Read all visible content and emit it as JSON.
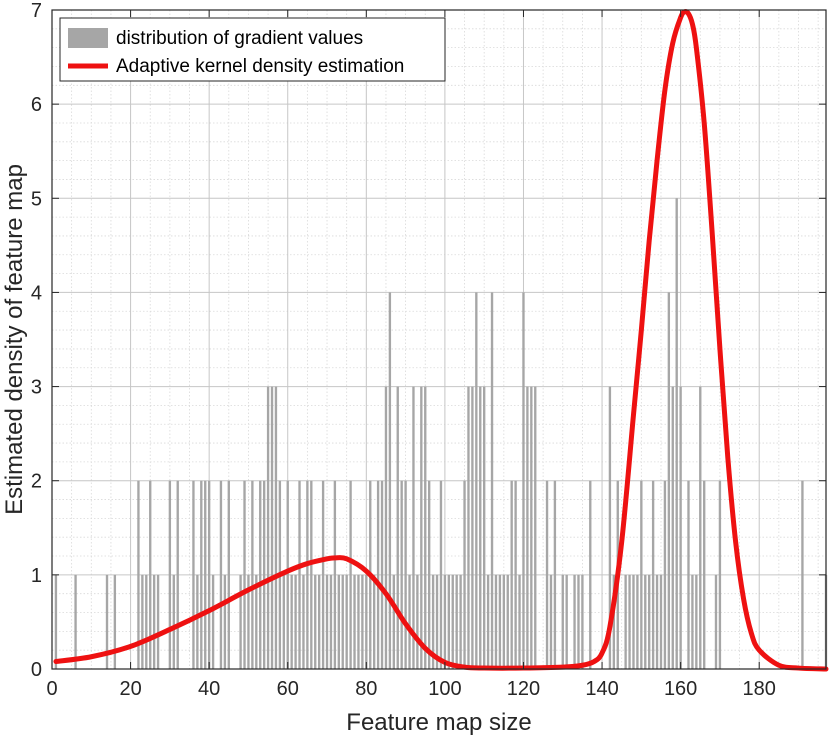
{
  "chart_data": {
    "type": "bar",
    "xlabel": "Feature map size",
    "ylabel": "Estimated density of feature map",
    "xlim": [
      0,
      197
    ],
    "ylim": [
      0,
      7
    ],
    "xticks": [
      0,
      20,
      40,
      60,
      80,
      100,
      120,
      140,
      160,
      180
    ],
    "yticks": [
      0,
      1,
      2,
      3,
      4,
      5,
      6,
      7
    ],
    "grid": true,
    "minor_grid": true,
    "legend_position": "top-left",
    "series": [
      {
        "name": "distribution of gradient values",
        "kind": "histogram",
        "color": "#a6a6a6",
        "x": [
          1,
          6,
          14,
          16,
          22,
          23,
          24,
          25,
          26,
          27,
          30,
          31,
          32,
          36,
          37,
          38,
          39,
          40,
          41,
          43,
          44,
          45,
          48,
          49,
          50,
          51,
          52,
          53,
          54,
          55,
          56,
          57,
          58,
          59,
          60,
          61,
          62,
          63,
          64,
          65,
          66,
          67,
          68,
          69,
          70,
          71,
          72,
          73,
          74,
          75,
          76,
          77,
          78,
          79,
          80,
          81,
          82,
          83,
          84,
          85,
          86,
          87,
          88,
          89,
          90,
          91,
          92,
          93,
          94,
          95,
          96,
          97,
          98,
          99,
          100,
          101,
          102,
          103,
          104,
          105,
          106,
          107,
          108,
          109,
          110,
          111,
          112,
          113,
          114,
          115,
          116,
          117,
          118,
          119,
          120,
          121,
          122,
          123,
          126,
          127,
          128,
          130,
          131,
          133,
          134,
          135,
          137,
          142,
          143,
          144,
          146,
          147,
          148,
          149,
          150,
          151,
          152,
          153,
          154,
          155,
          156,
          157,
          158,
          159,
          160,
          162,
          163,
          164,
          165,
          166,
          169,
          170,
          191,
          197
        ],
        "values": [
          1,
          1,
          1,
          1,
          2,
          1,
          1,
          2,
          1,
          1,
          2,
          1,
          2,
          2,
          1,
          2,
          2,
          2,
          1,
          2,
          1,
          2,
          1,
          2,
          1,
          2,
          1,
          2,
          2,
          3,
          3,
          3,
          2,
          1,
          2,
          1,
          1,
          2,
          1,
          2,
          2,
          1,
          1,
          2,
          1,
          1,
          2,
          1,
          1,
          1,
          2,
          1,
          1,
          1,
          1,
          2,
          1,
          2,
          2,
          3,
          4,
          1,
          3,
          2,
          2,
          1,
          3,
          1,
          3,
          3,
          2,
          1,
          1,
          2,
          1,
          1,
          1,
          1,
          1,
          2,
          3,
          3,
          4,
          3,
          3,
          1,
          4,
          1,
          1,
          1,
          1,
          2,
          2,
          1,
          4,
          3,
          3,
          3,
          2,
          1,
          2,
          1,
          1,
          1,
          1,
          1,
          2,
          3,
          1,
          2,
          1,
          1,
          1,
          1,
          2,
          1,
          1,
          2,
          1,
          1,
          2,
          4,
          3,
          5,
          3,
          2,
          1,
          1,
          3,
          2,
          1,
          2,
          2,
          1
        ]
      },
      {
        "name": "Adaptive kernel density estimation",
        "kind": "line",
        "color": "#ee1111",
        "x": [
          1,
          10,
          20,
          30,
          40,
          50,
          60,
          65,
          70,
          72,
          75,
          80,
          85,
          90,
          95,
          100,
          105,
          110,
          120,
          130,
          135,
          138,
          140,
          142,
          145,
          148,
          150,
          152,
          154,
          156,
          158,
          160,
          161,
          162,
          163,
          164,
          166,
          168,
          170,
          172,
          174,
          176,
          178,
          180,
          185,
          190,
          197
        ],
        "values": [
          0.08,
          0.13,
          0.24,
          0.42,
          0.62,
          0.84,
          1.04,
          1.12,
          1.17,
          1.18,
          1.17,
          1.04,
          0.8,
          0.48,
          0.22,
          0.07,
          0.02,
          0.01,
          0.01,
          0.02,
          0.04,
          0.08,
          0.17,
          0.45,
          1.35,
          2.7,
          3.6,
          4.55,
          5.4,
          6.15,
          6.65,
          6.92,
          6.98,
          6.96,
          6.85,
          6.6,
          5.8,
          4.65,
          3.4,
          2.25,
          1.35,
          0.75,
          0.38,
          0.2,
          0.04,
          0.01,
          0.0
        ]
      }
    ]
  }
}
